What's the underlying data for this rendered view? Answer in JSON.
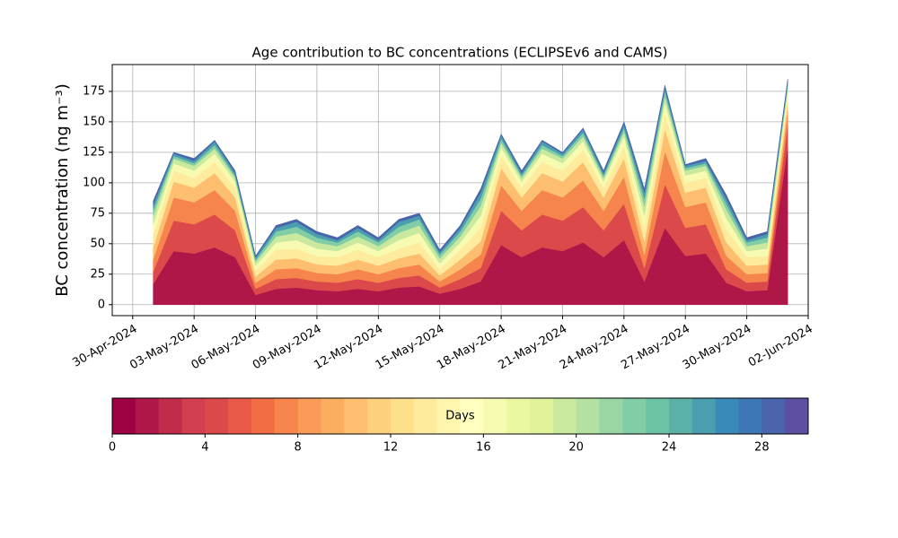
{
  "chart_data": {
    "type": "stacked-area",
    "title": "Age contribution to BC concentrations (ECLIPSEv6 and CAMS)",
    "y_label": "BC concentration (ng m⁻³)",
    "x": [
      "2024-05-01",
      "2024-05-02",
      "2024-05-03",
      "2024-05-04",
      "2024-05-05",
      "2024-05-06",
      "2024-05-07",
      "2024-05-08",
      "2024-05-09",
      "2024-05-10",
      "2024-05-11",
      "2024-05-12",
      "2024-05-13",
      "2024-05-14",
      "2024-05-15",
      "2024-05-16",
      "2024-05-17",
      "2024-05-18",
      "2024-05-19",
      "2024-05-20",
      "2024-05-21",
      "2024-05-22",
      "2024-05-23",
      "2024-05-24",
      "2024-05-25",
      "2024-05-26",
      "2024-05-27",
      "2024-05-28",
      "2024-05-29",
      "2024-05-30",
      "2024-05-31",
      "2024-06-01"
    ],
    "series": [
      {
        "color": "#ae1747",
        "values": [
          17,
          44,
          42,
          47,
          39,
          8,
          13,
          14,
          12,
          11,
          13,
          11,
          14,
          15,
          9,
          13,
          19,
          49,
          39,
          47,
          44,
          51,
          39,
          53,
          19,
          63,
          40,
          42,
          18,
          11,
          12,
          130
        ]
      },
      {
        "color": "#dc494a",
        "values": [
          10,
          25,
          24,
          27,
          22,
          5,
          8,
          8,
          7,
          7,
          8,
          7,
          8,
          9,
          5,
          8,
          11,
          28,
          22,
          27,
          25,
          29,
          22,
          30,
          11,
          36,
          23,
          24,
          11,
          7,
          7,
          18
        ]
      },
      {
        "color": "#f6844d",
        "values": [
          10,
          19,
          18,
          20,
          16,
          5,
          8,
          8,
          7,
          7,
          8,
          7,
          8,
          9,
          5,
          8,
          11,
          21,
          16,
          20,
          19,
          22,
          16,
          22,
          11,
          27,
          17,
          18,
          11,
          7,
          7,
          11
        ]
      },
      {
        "color": "#fdbf6f",
        "values": [
          10,
          13,
          12,
          14,
          11,
          5,
          8,
          8,
          7,
          7,
          8,
          7,
          8,
          9,
          5,
          8,
          11,
          14,
          11,
          14,
          13,
          15,
          11,
          15,
          11,
          18,
          12,
          12,
          11,
          7,
          7,
          7
        ]
      },
      {
        "color": "#feeb9d",
        "values": [
          10,
          9,
          8,
          9,
          8,
          5,
          8,
          8,
          7,
          7,
          8,
          7,
          8,
          9,
          5,
          8,
          11,
          10,
          8,
          9,
          9,
          10,
          8,
          10,
          11,
          13,
          8,
          8,
          11,
          7,
          7,
          6
        ]
      },
      {
        "color": "#f7fbb2",
        "values": [
          9,
          6,
          6,
          7,
          5,
          4,
          6,
          7,
          6,
          5,
          6,
          5,
          7,
          8,
          5,
          6,
          10,
          7,
          5,
          7,
          6,
          7,
          5,
          8,
          10,
          9,
          6,
          6,
          9,
          5,
          6,
          4
        ]
      },
      {
        "color": "#c8e99e",
        "values": [
          7,
          4,
          4,
          4,
          3,
          3,
          5,
          6,
          5,
          4,
          5,
          4,
          6,
          6,
          4,
          5,
          8,
          4,
          3,
          4,
          4,
          4,
          3,
          4,
          8,
          5,
          4,
          4,
          7,
          4,
          5,
          3
        ]
      },
      {
        "color": "#81cda5",
        "values": [
          5,
          2,
          2,
          3,
          2,
          2,
          4,
          5,
          4,
          3,
          4,
          3,
          5,
          5,
          3,
          4,
          6,
          3,
          2,
          3,
          2,
          3,
          2,
          3,
          6,
          4,
          2,
          2,
          5,
          3,
          4,
          2
        ]
      },
      {
        "color": "#4a9eb0",
        "values": [
          4,
          2,
          2,
          3,
          2,
          2,
          3,
          4,
          3,
          2,
          3,
          2,
          4,
          3,
          2,
          3,
          5,
          3,
          2,
          3,
          2,
          3,
          2,
          3,
          5,
          3,
          2,
          2,
          4,
          2,
          3,
          2
        ]
      },
      {
        "color": "#4964ab",
        "values": [
          3,
          1,
          2,
          1,
          2,
          1,
          2,
          2,
          2,
          2,
          2,
          2,
          2,
          2,
          2,
          2,
          3,
          1,
          2,
          1,
          1,
          1,
          2,
          2,
          3,
          2,
          1,
          2,
          3,
          2,
          2,
          2
        ]
      }
    ],
    "xlim": [
      "2024-04-29",
      "2024-06-02"
    ],
    "xticks": [
      {
        "value": "2024-04-30",
        "label": "30-Apr-2024"
      },
      {
        "value": "2024-05-03",
        "label": "03-May-2024"
      },
      {
        "value": "2024-05-06",
        "label": "06-May-2024"
      },
      {
        "value": "2024-05-09",
        "label": "09-May-2024"
      },
      {
        "value": "2024-05-12",
        "label": "12-May-2024"
      },
      {
        "value": "2024-05-15",
        "label": "15-May-2024"
      },
      {
        "value": "2024-05-18",
        "label": "18-May-2024"
      },
      {
        "value": "2024-05-21",
        "label": "21-May-2024"
      },
      {
        "value": "2024-05-24",
        "label": "24-May-2024"
      },
      {
        "value": "2024-05-27",
        "label": "27-May-2024"
      },
      {
        "value": "2024-05-30",
        "label": "30-May-2024"
      },
      {
        "value": "2024-06-02",
        "label": "02-Jun-2024"
      }
    ],
    "ylim": [
      -9,
      197
    ],
    "yticks": [
      0,
      25,
      50,
      75,
      100,
      125,
      150,
      175
    ],
    "grid": true,
    "colorbar": {
      "label": "Days",
      "lim": [
        0,
        30
      ],
      "ticks": [
        0,
        4,
        8,
        12,
        16,
        20,
        24,
        28
      ],
      "colors": [
        "#9e0142",
        "#ae1747",
        "#bf2d4b",
        "#d0404e",
        "#dc494a",
        "#e85a47",
        "#f26c44",
        "#f6844d",
        "#f99b56",
        "#fcae60",
        "#fdbf6f",
        "#fdd07e",
        "#fee08b",
        "#feeb9d",
        "#fff5af",
        "#ffffbf",
        "#f7fbb2",
        "#ecf7a2",
        "#e0f39a",
        "#c8e99e",
        "#b3e0a3",
        "#9ad6a4",
        "#81cda5",
        "#6cc4a5",
        "#5bb1a9",
        "#4a9eb0",
        "#3a8ab9",
        "#3b78b5",
        "#4964ab",
        "#5e4fa2"
      ]
    }
  }
}
